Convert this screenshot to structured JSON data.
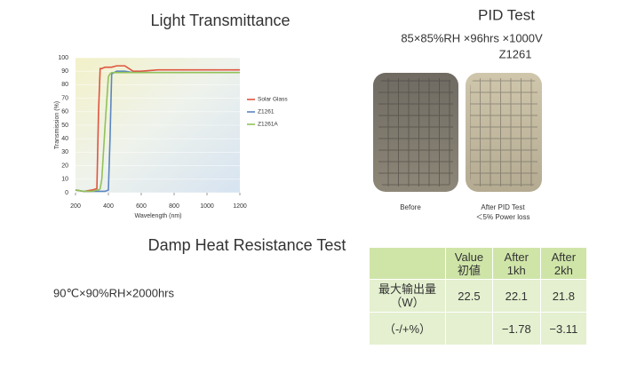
{
  "chart_data": {
    "type": "line",
    "title": "Light Transmittance",
    "xlabel": "Wavelength (nm)",
    "ylabel": "Transmission (%)",
    "x": [
      200,
      250,
      300,
      330,
      340,
      350,
      360,
      380,
      400,
      410,
      420,
      450,
      500,
      550,
      600,
      700,
      800,
      1000,
      1200
    ],
    "series": [
      {
        "name": "Solar Glass",
        "color": "#e0553f",
        "values": [
          2,
          1,
          2,
          3,
          60,
          92,
          92,
          93,
          93,
          93,
          93,
          94,
          94,
          90,
          90,
          91,
          91,
          91,
          91
        ]
      },
      {
        "name": "Z1261",
        "color": "#5b86c0",
        "values": [
          2,
          1,
          1,
          1,
          1,
          1,
          1,
          1,
          2,
          40,
          88,
          90,
          90,
          89,
          89,
          89,
          89,
          89,
          89
        ]
      },
      {
        "name": "Z1261A",
        "color": "#93c15a",
        "values": [
          2,
          1,
          1,
          2,
          2,
          3,
          10,
          50,
          86,
          88,
          89,
          89,
          89,
          89,
          89,
          89,
          89,
          89,
          89
        ]
      }
    ],
    "xlim": [
      200,
      1200
    ],
    "xticks": [
      200,
      400,
      600,
      800,
      1000,
      1200
    ],
    "ylim": [
      0,
      100
    ],
    "yticks": [
      0,
      10,
      20,
      30,
      40,
      50,
      60,
      70,
      80,
      90,
      100
    ],
    "grid": true,
    "legend": "right"
  },
  "pid_test": {
    "title": "PID Test",
    "condition": "85×85%RH ×96hrs ×1000V",
    "model": "Z1261",
    "before_label": "Before",
    "after_label": "After PID Test",
    "after_note": "＜5% Power loss"
  },
  "damp_heat": {
    "title": "Damp Heat Resistance Test",
    "condition": "90℃×90%RH×2000hrs"
  },
  "table": {
    "header": [
      [
        "Value",
        "初値"
      ],
      [
        "After",
        "1kh"
      ],
      [
        "After",
        "2kh"
      ]
    ],
    "rows": [
      {
        "label": [
          "最大输出量",
          "（W）"
        ],
        "cells": [
          "22.5",
          "22.1",
          "21.8"
        ]
      },
      {
        "label": [
          "（-/+%）"
        ],
        "cells": [
          null,
          "−1.78",
          "−3.11"
        ]
      }
    ]
  }
}
